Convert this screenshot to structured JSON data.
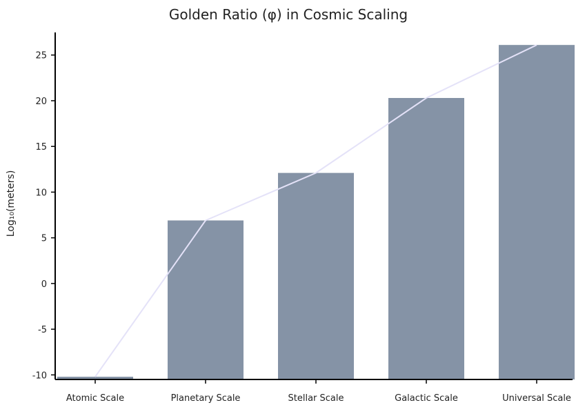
{
  "chart_data": {
    "type": "bar",
    "title": "Golden Ratio (φ) in Cosmic Scaling",
    "xlabel": "",
    "ylabel": "Log₁₀(meters)",
    "categories": [
      "Atomic Scale",
      "Planetary Scale",
      "Stellar Scale",
      "Galactic Scale",
      "Universal Scale"
    ],
    "values": [
      -10.2,
      6.9,
      12.1,
      20.3,
      26.1
    ],
    "ylim": [
      -10.5,
      28
    ],
    "yticks": [
      -10,
      -5,
      0,
      5,
      10,
      15,
      20,
      25
    ],
    "overlay_line": {
      "type": "line",
      "values": [
        -10.2,
        6.9,
        12.1,
        20.3,
        26.1
      ],
      "color": "#e4e2f8"
    },
    "bar_color": "#8593a6",
    "axis_color": "#000000",
    "grid": false,
    "legend": "none"
  }
}
